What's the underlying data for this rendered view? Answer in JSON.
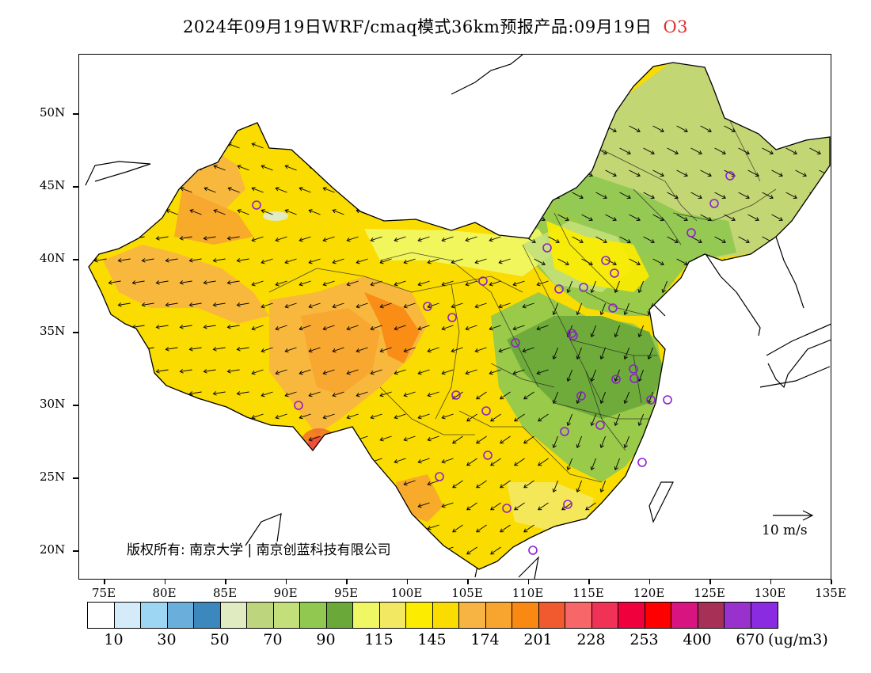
{
  "title": {
    "main": "2024年09月19日WRF/cmaq模式36km预报产品:09月19日",
    "species": "O3"
  },
  "axes": {
    "lat_labels": [
      "50N",
      "45N",
      "40N",
      "35N",
      "30N",
      "25N",
      "20N"
    ],
    "lon_labels": [
      "75E",
      "80E",
      "85E",
      "90E",
      "95E",
      "100E",
      "105E",
      "110E",
      "115E",
      "120E",
      "125E",
      "130E",
      "135E"
    ]
  },
  "wind_reference": "10 m/s",
  "copyright": "版权所有: 南京大学 | 南京创蓝科技有限公司",
  "legend": {
    "colors": [
      "#ffffff",
      "#d4ecfa",
      "#9dd6f2",
      "#6aaedc",
      "#3d87bf",
      "#e0ebc1",
      "#bdd57d",
      "#c2df7a",
      "#90c850",
      "#6aa83a",
      "#f0f765",
      "#f3e862",
      "#fbec00",
      "#fadc00",
      "#f7b442",
      "#f7a52f",
      "#f98912",
      "#f05a2e",
      "#f76668",
      "#f03256",
      "#f0003c",
      "#ff0000",
      "#d7147f",
      "#a73056",
      "#9932cc",
      "#8a2be2"
    ],
    "labels": [
      "10",
      "30",
      "50",
      "70",
      "90",
      "115",
      "145",
      "174",
      "201",
      "228",
      "253",
      "400",
      "670"
    ],
    "units": "(ug/m3)"
  },
  "colors": {
    "accent": "#e03030",
    "station_marker": "#8e1fd0",
    "coast": "#000000"
  }
}
